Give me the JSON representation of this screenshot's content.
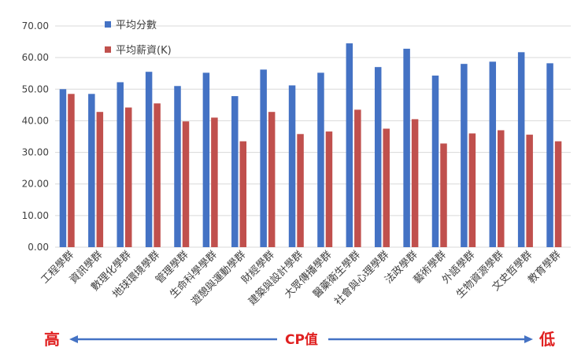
{
  "chart_data": {
    "type": "bar",
    "categories": [
      "工程學群",
      "資訊學群",
      "數理化學群",
      "地球環境學群",
      "管理學群",
      "生命科學學群",
      "遊憩與運動學群",
      "財經學群",
      "建築與設計學群",
      "大眾傳播學群",
      "醫藥衛生學群",
      "社會與心理學群",
      "法政學群",
      "藝術學群",
      "外語學群",
      "生物資源學群",
      "文史哲學群",
      "教育學群"
    ],
    "series": [
      {
        "name": "平均分數",
        "color": "#4472c4",
        "values": [
          50.0,
          48.5,
          52.2,
          55.5,
          51.0,
          55.2,
          47.8,
          56.2,
          51.2,
          55.2,
          64.5,
          57.0,
          62.8,
          54.3,
          58.0,
          58.7,
          61.7,
          58.2
        ]
      },
      {
        "name": "平均薪資(K)",
        "color": "#c0504d",
        "values": [
          48.5,
          42.8,
          44.2,
          45.5,
          39.8,
          41.0,
          33.5,
          42.8,
          35.8,
          36.6,
          43.5,
          37.5,
          40.5,
          32.8,
          36.0,
          37.0,
          35.6,
          33.5
        ]
      }
    ],
    "ylim": [
      0,
      70
    ],
    "yticks": [
      "0.00",
      "10.00",
      "20.00",
      "30.00",
      "40.00",
      "50.00",
      "60.00",
      "70.00"
    ],
    "grid": true,
    "legend": "top-left"
  },
  "annotation": {
    "left": "高",
    "center": "CP值",
    "right": "低",
    "arrow_color": "#4472c4"
  }
}
